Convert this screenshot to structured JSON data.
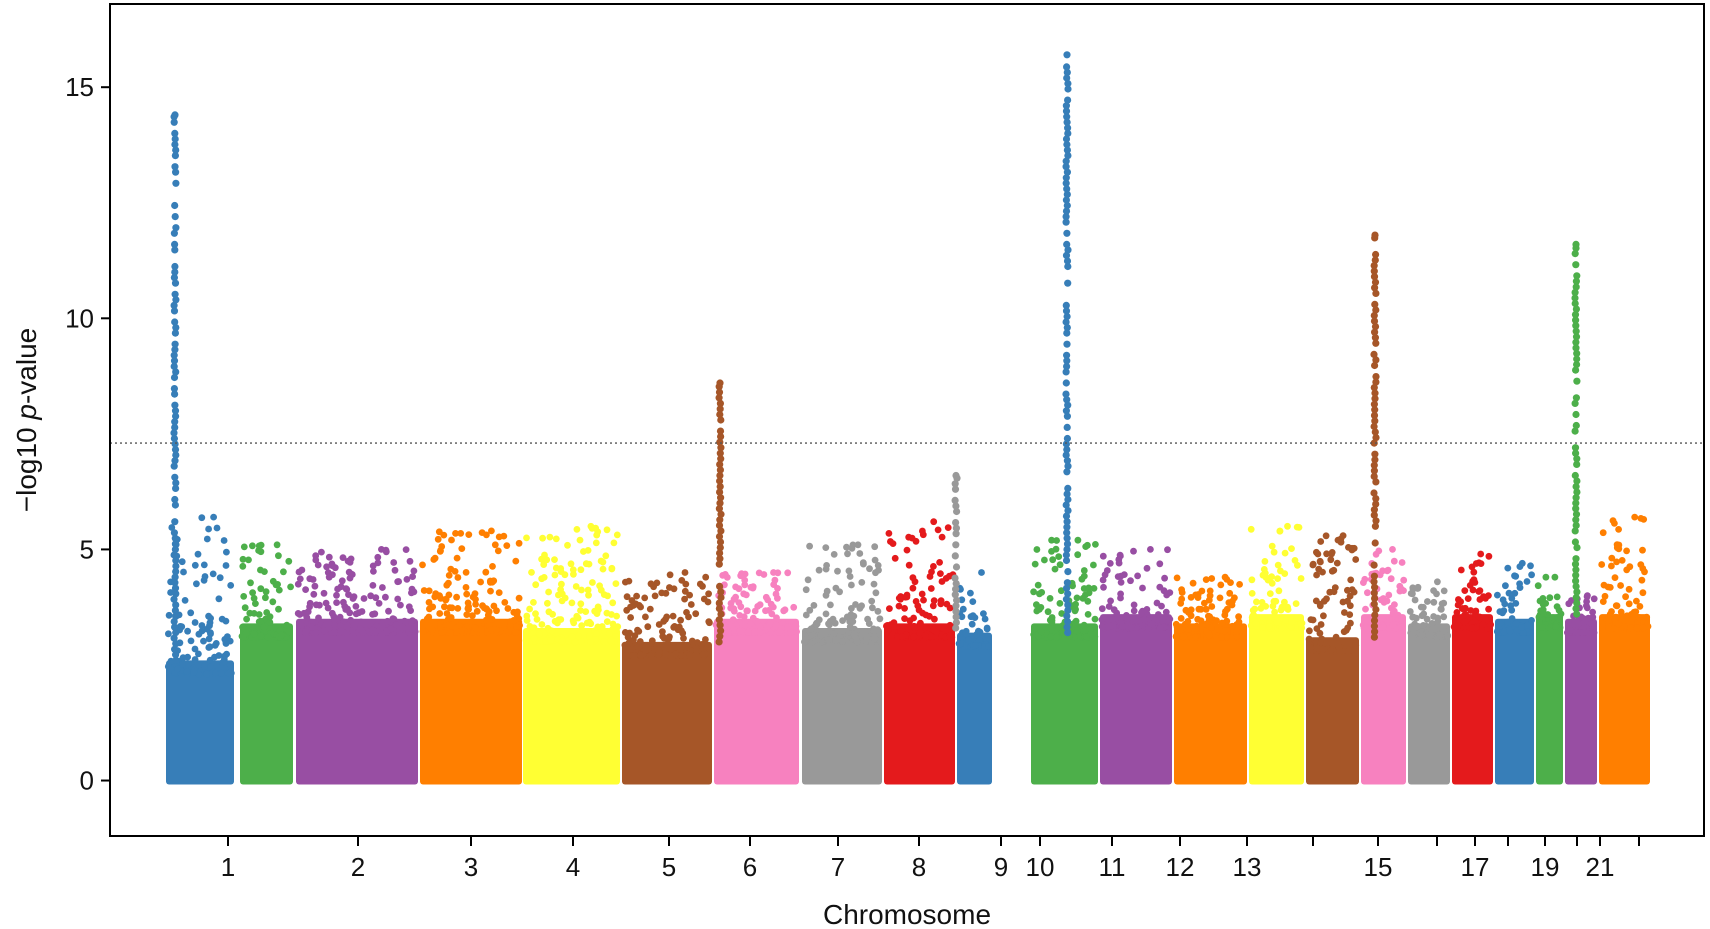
{
  "chart_data": {
    "type": "scatter",
    "subtype": "manhattan",
    "xlabel": "Chromosome",
    "ylabel_parts": [
      "−log10 ",
      "p",
      "-value"
    ],
    "ylim": [
      -1.2,
      16.8
    ],
    "yticks": [
      0,
      5,
      10,
      15
    ],
    "significance_threshold": 7.3,
    "grid": false,
    "legend": "none",
    "chromosomes": [
      {
        "chr": "1",
        "label": "1",
        "color": "#377eb8",
        "bulk": 2.6,
        "max": 5.7
      },
      {
        "chr": "2",
        "label": "2",
        "color": "#4daf4a",
        "bulk": 3.4,
        "max": 5.1
      },
      {
        "chr": "3",
        "label": "3",
        "color": "#984ea3",
        "bulk": 3.5,
        "max": 5.0
      },
      {
        "chr": "4",
        "label": "4",
        "color": "#ff7f00",
        "bulk": 3.5,
        "max": 5.4
      },
      {
        "chr": "5",
        "label": "5",
        "color": "#ffff33",
        "bulk": 3.3,
        "max": 5.5
      },
      {
        "chr": "6",
        "label": "6",
        "color": "#a65628",
        "bulk": 3.0,
        "max": 4.5
      },
      {
        "chr": "7",
        "label": "7",
        "color": "#f781bf",
        "bulk": 3.5,
        "max": 4.5
      },
      {
        "chr": "8",
        "label": "8",
        "color": "#999999",
        "bulk": 3.3,
        "max": 5.1
      },
      {
        "chr": "9",
        "label": "9",
        "color": "#e41a1c",
        "bulk": 3.4,
        "max": 5.6
      },
      {
        "chr": "10",
        "label": "10",
        "color": "#377eb8",
        "bulk": 3.2,
        "max": 4.5
      },
      {
        "chr": "11",
        "label": "11",
        "color": "#4daf4a",
        "bulk": 3.4,
        "max": 5.2
      },
      {
        "chr": "12",
        "label": "12",
        "color": "#984ea3",
        "bulk": 3.6,
        "max": 5.0
      },
      {
        "chr": "13",
        "label": "13",
        "color": "#ff7f00",
        "bulk": 3.4,
        "max": 4.4
      },
      {
        "chr": "14",
        "label": "",
        "color": "#ffff33",
        "bulk": 3.6,
        "max": 5.5
      },
      {
        "chr": "15",
        "label": "15",
        "color": "#a65628",
        "bulk": 3.1,
        "max": 5.3
      },
      {
        "chr": "16",
        "label": "",
        "color": "#f781bf",
        "bulk": 3.6,
        "max": 5.0
      },
      {
        "chr": "17",
        "label": "17",
        "color": "#999999",
        "bulk": 3.4,
        "max": 4.3
      },
      {
        "chr": "18",
        "label": "",
        "color": "#e41a1c",
        "bulk": 3.6,
        "max": 4.9
      },
      {
        "chr": "19",
        "label": "19",
        "color": "#377eb8",
        "bulk": 3.5,
        "max": 4.7
      },
      {
        "chr": "20",
        "label": "",
        "color": "#4daf4a",
        "bulk": 3.6,
        "max": 4.4
      },
      {
        "chr": "21",
        "label": "21",
        "color": "#984ea3",
        "bulk": 3.5,
        "max": 4.0
      },
      {
        "chr": "22",
        "label": "",
        "color": "#ff7f00",
        "bulk": 3.6,
        "max": 5.7
      }
    ],
    "peaks": [
      {
        "chr": "1",
        "top": 14.4
      },
      {
        "chr": "6",
        "top": 8.6
      },
      {
        "chr": "8",
        "top": 6.6
      },
      {
        "chr": "10",
        "top": 15.7
      },
      {
        "chr": "15",
        "top": 11.8
      },
      {
        "chr": "20",
        "top": 11.6
      }
    ]
  }
}
